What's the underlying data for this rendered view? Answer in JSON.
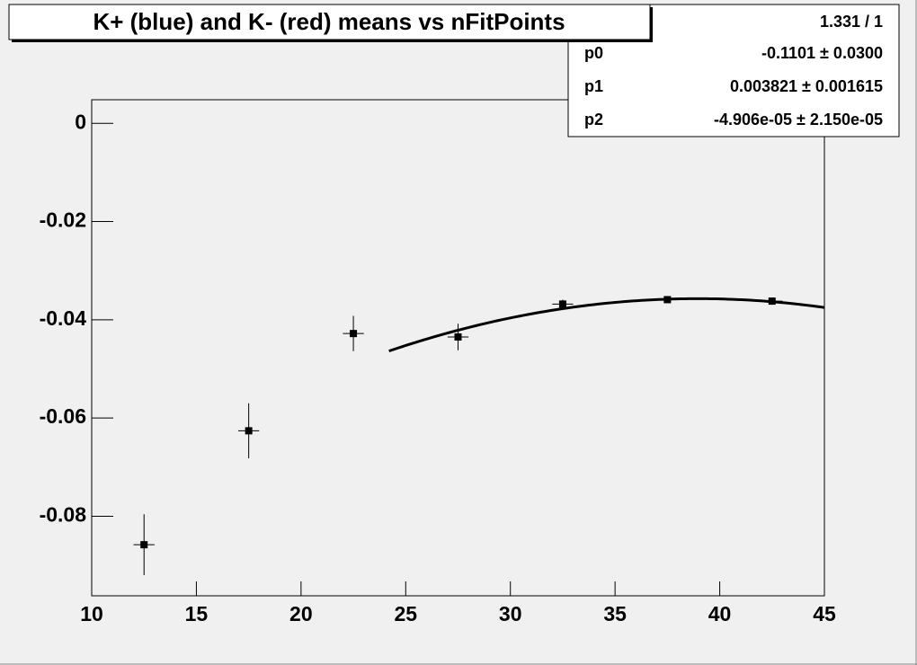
{
  "chart_data": {
    "type": "errorbar",
    "title": "K+ (blue) and K- (red) means vs nFitPoints",
    "x": [
      12.5,
      17.5,
      22.5,
      27.5,
      32.5,
      37.5,
      42.5
    ],
    "xerr": [
      0.5,
      0.5,
      0.5,
      0.5,
      0.5,
      0.5,
      0.5
    ],
    "values": [
      -0.0858,
      -0.0626,
      -0.0428,
      -0.0435,
      -0.0368,
      -0.0359,
      -0.0362
    ],
    "yerr": [
      0.0062,
      0.0056,
      0.0036,
      0.0027,
      0.0009,
      0.0005,
      0.0005
    ],
    "color": "#000000",
    "xlim": [
      10,
      45
    ],
    "xticks": [
      10,
      15,
      20,
      25,
      30,
      35,
      40,
      45
    ],
    "ylim": [
      -0.0962,
      0.0048
    ],
    "yticks": [
      0,
      -0.02,
      -0.04,
      -0.06,
      -0.08
    ],
    "fit": {
      "chi2_ndf": "1.331 / 1",
      "xrange": [
        24.2,
        45
      ],
      "params": [
        {
          "name": "p0",
          "value": -0.1101,
          "error": 0.03,
          "label": "-0.1101 ± 0.0300"
        },
        {
          "name": "p1",
          "value": 0.003821,
          "error": 0.001615,
          "label": "0.003821 ± 0.001615"
        },
        {
          "name": "p2",
          "value": -4.906e-05,
          "error": 2.15e-05,
          "label": "-4.906e-05 ± 2.150e-05"
        }
      ]
    }
  }
}
